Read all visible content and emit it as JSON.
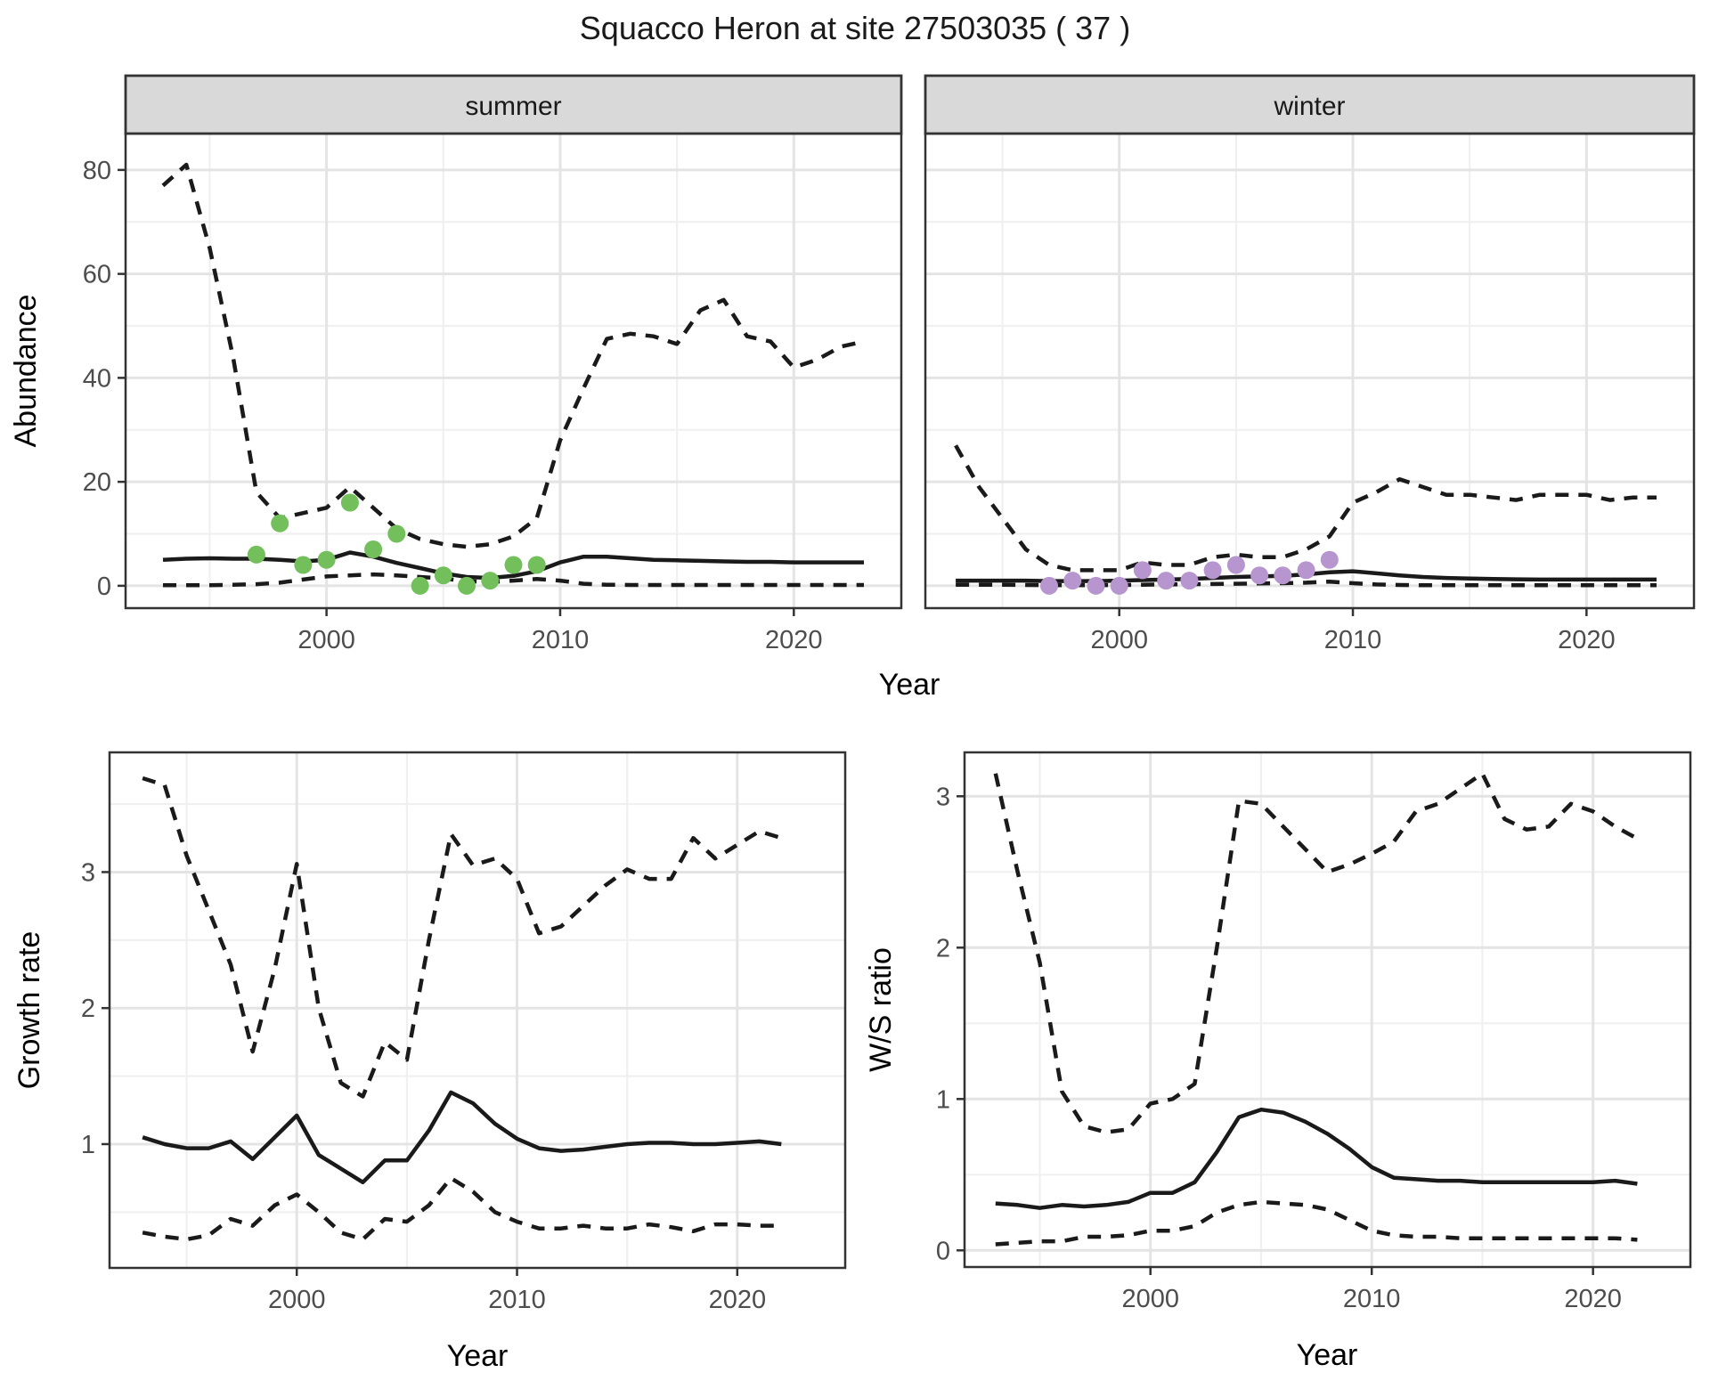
{
  "title": "Squacco Heron at site 27503035 ( 37 )",
  "colors": {
    "background": "#FFFFFF",
    "line": "#1A1A1A",
    "panel_border": "#333333",
    "strip_fill": "#D9D9D9",
    "grid_major": "#E4E4E4",
    "grid_minor": "#F0F0F0",
    "tick_label": "#4D4D4D",
    "observed_summer": "#72BF5B",
    "observed_winter": "#B795CE"
  },
  "chart_data": [
    {
      "id": "abundance-summer",
      "type": "line",
      "facet_label": "summer",
      "xlabel": "Year",
      "ylabel": "Abundance",
      "xlim": [
        1991.4,
        2024.6
      ],
      "ylim": [
        -4.3,
        87
      ],
      "xticks": [
        2000,
        2010,
        2020
      ],
      "xminor": [
        1995,
        2005,
        2015
      ],
      "yticks": [
        0,
        20,
        40,
        60,
        80
      ],
      "yminor": [
        10,
        30,
        50,
        70
      ],
      "years": [
        1993,
        1994,
        1995,
        1996,
        1997,
        1998,
        1999,
        2000,
        2001,
        2002,
        2003,
        2004,
        2005,
        2006,
        2007,
        2008,
        2009,
        2010,
        2011,
        2012,
        2013,
        2014,
        2015,
        2016,
        2017,
        2018,
        2019,
        2020,
        2021,
        2022,
        2023
      ],
      "series": [
        {
          "name": "upper_95ci",
          "style": "dashed",
          "values": [
            77,
            81,
            65,
            44,
            18,
            13,
            14,
            15,
            19,
            15,
            11,
            9,
            8,
            7.5,
            8,
            9.5,
            13,
            28,
            38,
            47.5,
            48.5,
            48,
            46.5,
            53,
            55,
            48,
            47,
            42,
            43.5,
            46,
            47
          ]
        },
        {
          "name": "lower_95ci",
          "style": "dashed",
          "values": [
            0.1,
            0.1,
            0.1,
            0.2,
            0.3,
            0.6,
            1.2,
            1.8,
            2.0,
            2.2,
            2.0,
            1.7,
            1.4,
            0.9,
            0.7,
            1.0,
            1.3,
            1.0,
            0.4,
            0.2,
            0.15,
            0.15,
            0.15,
            0.15,
            0.15,
            0.15,
            0.15,
            0.15,
            0.15,
            0.15,
            0.15
          ]
        },
        {
          "name": "median",
          "style": "solid",
          "values": [
            5.0,
            5.2,
            5.3,
            5.2,
            5.2,
            5.0,
            4.7,
            5.0,
            6.4,
            5.6,
            4.4,
            3.4,
            2.4,
            1.7,
            1.5,
            1.9,
            2.8,
            4.5,
            5.6,
            5.6,
            5.3,
            5.0,
            4.9,
            4.8,
            4.7,
            4.6,
            4.6,
            4.5,
            4.5,
            4.5,
            4.5
          ]
        }
      ],
      "points": {
        "name": "observed",
        "color_key": "observed_summer",
        "years": [
          1997,
          1998,
          1999,
          2000,
          2001,
          2002,
          2003,
          2004,
          2005,
          2006,
          2007,
          2008,
          2009
        ],
        "values": [
          6,
          12,
          4,
          5,
          16,
          7,
          10,
          0,
          2,
          0,
          1,
          4,
          4
        ]
      }
    },
    {
      "id": "abundance-winter",
      "type": "line",
      "facet_label": "winter",
      "xlabel": "Year",
      "ylabel": null,
      "xlim": [
        1991.7,
        2024.6
      ],
      "ylim": [
        -4.3,
        87
      ],
      "xticks": [
        2000,
        2010,
        2020
      ],
      "xminor": [
        1995,
        2005,
        2015
      ],
      "yticks": [
        0,
        20,
        40,
        60,
        80
      ],
      "yminor": [
        10,
        30,
        50,
        70
      ],
      "years": [
        1993,
        1994,
        1995,
        1996,
        1997,
        1998,
        1999,
        2000,
        2001,
        2002,
        2003,
        2004,
        2005,
        2006,
        2007,
        2008,
        2009,
        2010,
        2011,
        2012,
        2013,
        2014,
        2015,
        2016,
        2017,
        2018,
        2019,
        2020,
        2021,
        2022,
        2023
      ],
      "series": [
        {
          "name": "upper_95ci",
          "style": "dashed",
          "values": [
            27,
            19,
            13,
            7,
            4,
            3,
            3,
            3,
            4.5,
            4,
            4,
            5.5,
            6,
            5.5,
            5.5,
            7,
            9.5,
            16,
            18,
            20.5,
            19,
            17.5,
            17.5,
            17,
            16.5,
            17.5,
            17.5,
            17.5,
            16.5,
            17,
            17
          ]
        },
        {
          "name": "lower_95ci",
          "style": "dashed",
          "values": [
            0.2,
            0.2,
            0.2,
            0.15,
            0.1,
            0.1,
            0.1,
            0.15,
            0.2,
            0.25,
            0.3,
            0.35,
            0.4,
            0.45,
            0.5,
            0.6,
            0.8,
            0.5,
            0.25,
            0.15,
            0.1,
            0.1,
            0.1,
            0.1,
            0.1,
            0.1,
            0.1,
            0.1,
            0.1,
            0.1,
            0.1
          ]
        },
        {
          "name": "median",
          "style": "solid",
          "values": [
            1,
            1,
            1,
            1,
            0.9,
            0.9,
            0.9,
            1,
            1.1,
            1.2,
            1.3,
            1.5,
            1.7,
            1.8,
            1.9,
            2.2,
            2.6,
            2.8,
            2.4,
            2.0,
            1.7,
            1.5,
            1.4,
            1.3,
            1.25,
            1.2,
            1.2,
            1.2,
            1.2,
            1.2,
            1.2
          ]
        }
      ],
      "points": {
        "name": "observed",
        "color_key": "observed_winter",
        "years": [
          1997,
          1998,
          1999,
          2000,
          2001,
          2002,
          2003,
          2004,
          2005,
          2006,
          2007,
          2008,
          2009
        ],
        "values": [
          0,
          1,
          0,
          0,
          3,
          1,
          1,
          3,
          4,
          2,
          2,
          3,
          5
        ]
      }
    },
    {
      "id": "growth-rate",
      "type": "line",
      "facet_label": null,
      "xlabel": "Year",
      "ylabel": "Growth rate",
      "xlim": [
        1991.5,
        2024.9
      ],
      "ylim": [
        0.09,
        3.88
      ],
      "xticks": [
        2000,
        2010,
        2020
      ],
      "xminor": [
        1995,
        2005,
        2015
      ],
      "yticks": [
        1,
        2,
        3
      ],
      "yminor": [
        0.5,
        1.5,
        2.5,
        3.5
      ],
      "years": [
        1993,
        1994,
        1995,
        1996,
        1997,
        1998,
        1999,
        2000,
        2001,
        2002,
        2003,
        2004,
        2005,
        2006,
        2007,
        2008,
        2009,
        2010,
        2011,
        2012,
        2013,
        2014,
        2015,
        2016,
        2017,
        2018,
        2019,
        2020,
        2021,
        2022
      ],
      "series": [
        {
          "name": "upper_95ci",
          "style": "dashed",
          "values": [
            3.69,
            3.64,
            3.12,
            2.72,
            2.32,
            1.68,
            2.29,
            3.06,
            2.0,
            1.45,
            1.35,
            1.75,
            1.62,
            2.5,
            3.28,
            3.05,
            3.1,
            2.95,
            2.55,
            2.6,
            2.75,
            2.9,
            3.02,
            2.95,
            2.95,
            3.25,
            3.1,
            3.2,
            3.3,
            3.25
          ]
        },
        {
          "name": "lower_95ci",
          "style": "dashed",
          "values": [
            0.35,
            0.32,
            0.3,
            0.33,
            0.45,
            0.4,
            0.55,
            0.63,
            0.5,
            0.35,
            0.3,
            0.45,
            0.43,
            0.55,
            0.75,
            0.65,
            0.5,
            0.43,
            0.38,
            0.38,
            0.4,
            0.38,
            0.38,
            0.41,
            0.39,
            0.36,
            0.41,
            0.41,
            0.4,
            0.4
          ]
        },
        {
          "name": "median",
          "style": "solid",
          "values": [
            1.05,
            1.0,
            0.97,
            0.97,
            1.02,
            0.89,
            1.05,
            1.21,
            0.92,
            0.82,
            0.72,
            0.88,
            0.88,
            1.1,
            1.38,
            1.3,
            1.15,
            1.04,
            0.97,
            0.95,
            0.96,
            0.98,
            1.0,
            1.01,
            1.01,
            1.0,
            1.0,
            1.01,
            1.02,
            1.0
          ]
        }
      ],
      "points": null
    },
    {
      "id": "ws-ratio",
      "type": "line",
      "facet_label": null,
      "xlabel": "Year",
      "ylabel": "W/S ratio",
      "xlim": [
        1991.6,
        2024.4
      ],
      "ylim": [
        -0.11,
        3.29
      ],
      "xticks": [
        2000,
        2010,
        2020
      ],
      "xminor": [
        1995,
        2005,
        2015
      ],
      "yticks": [
        0,
        1,
        2,
        3
      ],
      "yminor": [
        0.5,
        1.5,
        2.5
      ],
      "years": [
        1993,
        1994,
        1995,
        1996,
        1997,
        1998,
        1999,
        2000,
        2001,
        2002,
        2003,
        2004,
        2005,
        2006,
        2007,
        2008,
        2009,
        2010,
        2011,
        2012,
        2013,
        2014,
        2015,
        2016,
        2017,
        2018,
        2019,
        2020,
        2021,
        2022
      ],
      "series": [
        {
          "name": "upper_95ci",
          "style": "dashed",
          "values": [
            3.15,
            2.5,
            1.9,
            1.05,
            0.82,
            0.78,
            0.8,
            0.97,
            1.0,
            1.1,
            2.0,
            2.97,
            2.95,
            2.8,
            2.65,
            2.5,
            2.55,
            2.62,
            2.7,
            2.9,
            2.95,
            3.05,
            3.15,
            2.85,
            2.78,
            2.8,
            2.95,
            2.9,
            2.8,
            2.72
          ]
        },
        {
          "name": "lower_95ci",
          "style": "dashed",
          "values": [
            0.04,
            0.05,
            0.06,
            0.06,
            0.09,
            0.09,
            0.1,
            0.13,
            0.13,
            0.16,
            0.25,
            0.3,
            0.32,
            0.31,
            0.3,
            0.27,
            0.2,
            0.13,
            0.1,
            0.09,
            0.09,
            0.08,
            0.08,
            0.08,
            0.08,
            0.08,
            0.08,
            0.08,
            0.08,
            0.07
          ]
        },
        {
          "name": "median",
          "style": "solid",
          "values": [
            0.31,
            0.3,
            0.28,
            0.3,
            0.29,
            0.3,
            0.32,
            0.38,
            0.38,
            0.45,
            0.65,
            0.88,
            0.93,
            0.91,
            0.85,
            0.77,
            0.67,
            0.55,
            0.48,
            0.47,
            0.46,
            0.46,
            0.45,
            0.45,
            0.45,
            0.45,
            0.45,
            0.45,
            0.46,
            0.44
          ]
        }
      ],
      "points": null
    }
  ]
}
